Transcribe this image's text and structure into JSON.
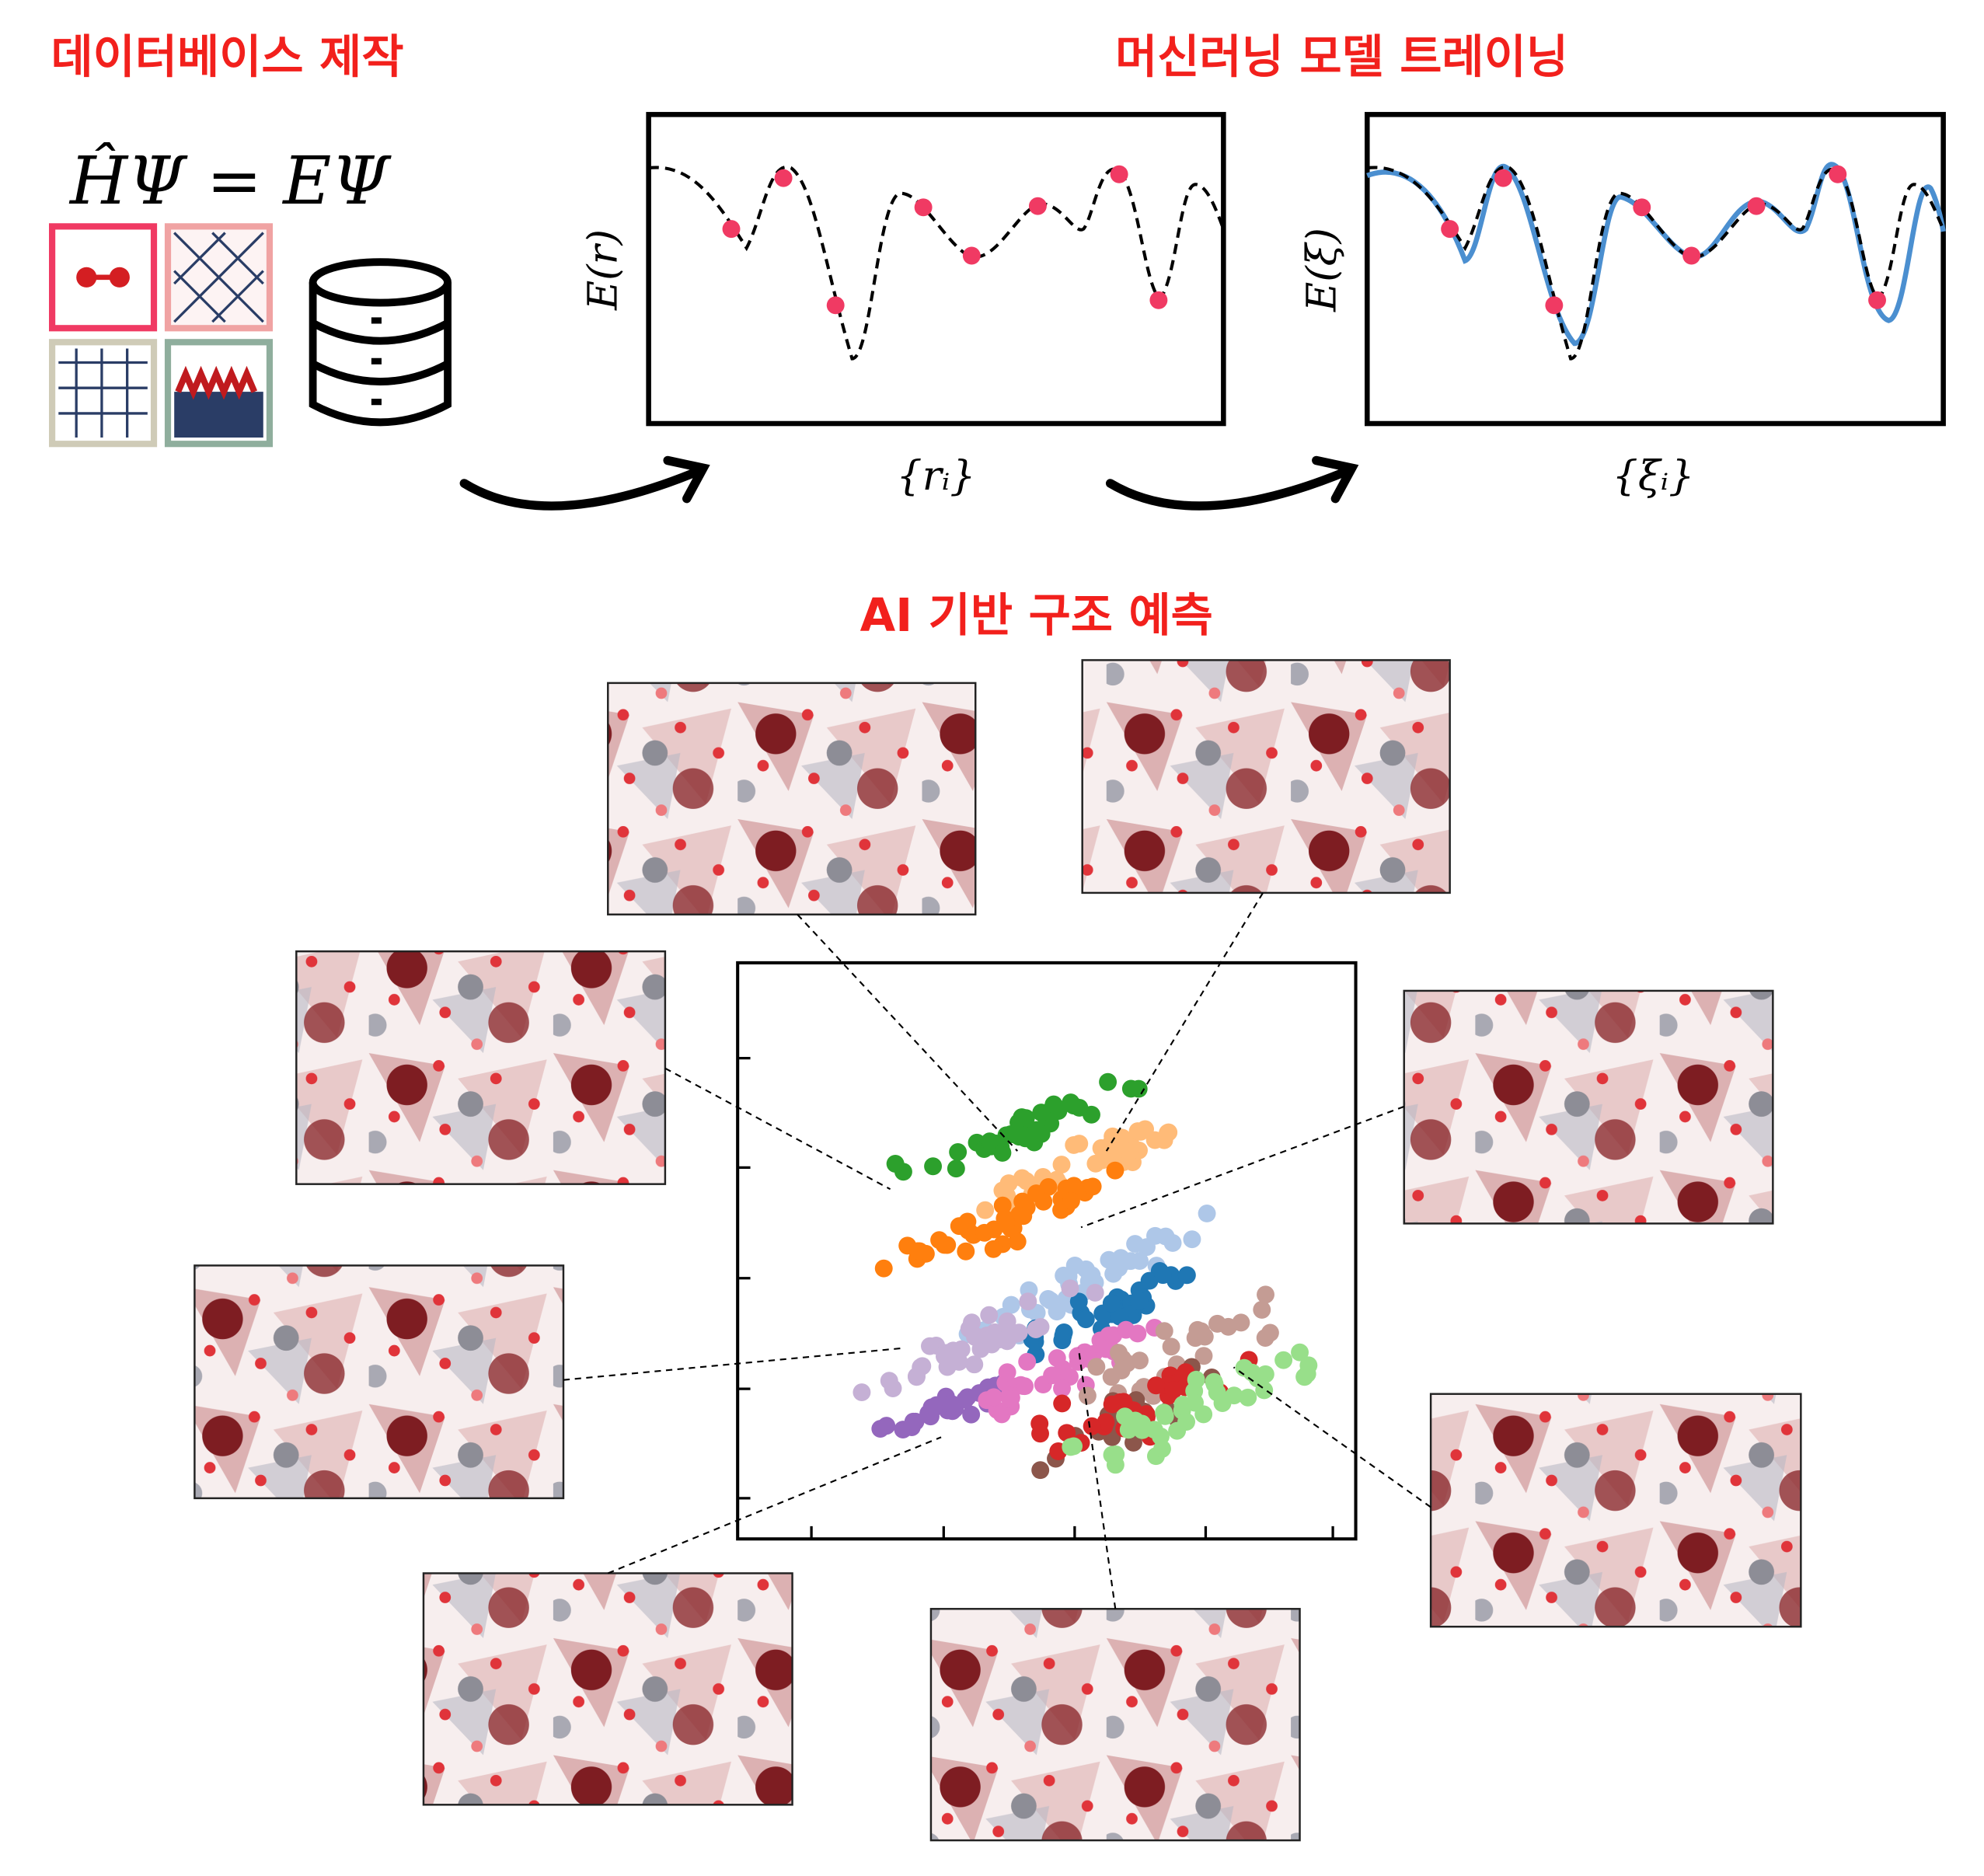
{
  "sections": {
    "database": "데이터베이스 제작",
    "training": "머신러닝 모델 트레이닝",
    "prediction": "AI 기반 구조 예측"
  },
  "equation": "ĤΨ = EΨ",
  "plots": [
    {
      "ylabel": "E(r)",
      "xlabel": "{rᵢ}"
    },
    {
      "ylabel": "E(ξ)",
      "xlabel": "{ξᵢ}"
    }
  ]
}
